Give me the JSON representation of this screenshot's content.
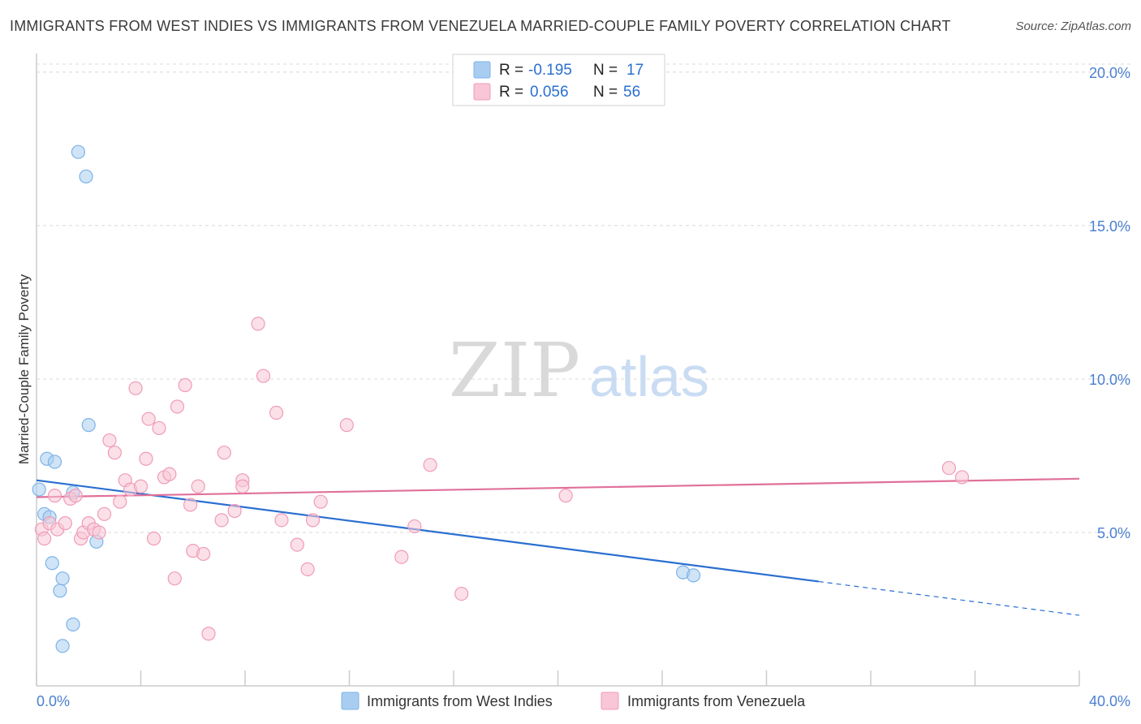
{
  "header": {
    "title": "IMMIGRANTS FROM WEST INDIES VS IMMIGRANTS FROM VENEZUELA MARRIED-COUPLE FAMILY POVERTY CORRELATION CHART",
    "source": "Source: ZipAtlas.com"
  },
  "watermark": {
    "zip": "ZIP",
    "atlas": "atlas"
  },
  "chart_data": {
    "type": "scatter",
    "title": "IMMIGRANTS FROM WEST INDIES VS IMMIGRANTS FROM VENEZUELA MARRIED-COUPLE FAMILY POVERTY CORRELATION CHART",
    "xlabel": "",
    "ylabel": "Married-Couple Family Poverty",
    "xlim": [
      0,
      40
    ],
    "ylim": [
      0,
      20.5
    ],
    "x_tick_labels": {
      "min": "0.0%",
      "max": "40.0%"
    },
    "y_ticks": [
      {
        "value": 5,
        "label": "5.0%"
      },
      {
        "value": 10,
        "label": "10.0%"
      },
      {
        "value": 15,
        "label": "15.0%"
      },
      {
        "value": 20,
        "label": "20.0%"
      }
    ],
    "grid": "horizontal dashed",
    "legend_position": "bottom",
    "series": [
      {
        "name": "Immigrants from West Indies",
        "color": "#7eb3e8",
        "fill": "#a9cdf1",
        "line_color": "#2a6fd0",
        "r_label": "R =",
        "r_value": "-0.195",
        "n_label": "N =",
        "n_value": "17",
        "trend": {
          "x0": 0,
          "y0": 6.7,
          "x1": 30,
          "y1": 3.4,
          "dash_to_x": 40,
          "dash_to_y": 2.3
        },
        "points": [
          [
            0.1,
            6.4
          ],
          [
            0.3,
            5.6
          ],
          [
            0.4,
            7.4
          ],
          [
            0.5,
            5.5
          ],
          [
            0.6,
            4.0
          ],
          [
            0.7,
            7.3
          ],
          [
            0.9,
            3.1
          ],
          [
            1.0,
            1.3
          ],
          [
            1.0,
            3.5
          ],
          [
            1.4,
            2.0
          ],
          [
            1.4,
            6.3
          ],
          [
            1.6,
            17.4
          ],
          [
            1.9,
            16.6
          ],
          [
            2.0,
            8.5
          ],
          [
            2.3,
            4.7
          ],
          [
            24.8,
            3.7
          ],
          [
            25.2,
            3.6
          ]
        ]
      },
      {
        "name": "Immigrants from Venezuela",
        "color": "#f09bb8",
        "fill": "#f8c6d6",
        "line_color": "#e0709a",
        "r_label": "R =",
        "r_value": "0.056",
        "n_label": "N =",
        "n_value": "56",
        "trend": {
          "x0": 0,
          "y0": 6.15,
          "x1": 40,
          "y1": 6.75
        },
        "points": [
          [
            0.2,
            5.1
          ],
          [
            0.3,
            4.8
          ],
          [
            0.5,
            5.3
          ],
          [
            0.7,
            6.2
          ],
          [
            0.8,
            5.1
          ],
          [
            1.1,
            5.3
          ],
          [
            1.3,
            6.1
          ],
          [
            1.5,
            6.2
          ],
          [
            1.7,
            4.8
          ],
          [
            1.8,
            5.0
          ],
          [
            2.0,
            5.3
          ],
          [
            2.2,
            5.1
          ],
          [
            2.4,
            5.0
          ],
          [
            2.6,
            5.6
          ],
          [
            2.8,
            8.0
          ],
          [
            3.0,
            7.6
          ],
          [
            3.2,
            6.0
          ],
          [
            3.4,
            6.7
          ],
          [
            3.6,
            6.4
          ],
          [
            3.8,
            9.7
          ],
          [
            4.0,
            6.5
          ],
          [
            4.2,
            7.4
          ],
          [
            4.3,
            8.7
          ],
          [
            4.5,
            4.8
          ],
          [
            4.7,
            8.4
          ],
          [
            4.9,
            6.8
          ],
          [
            5.1,
            6.9
          ],
          [
            5.3,
            3.5
          ],
          [
            5.4,
            9.1
          ],
          [
            5.7,
            9.8
          ],
          [
            5.9,
            5.9
          ],
          [
            6.0,
            4.4
          ],
          [
            6.2,
            6.5
          ],
          [
            6.4,
            4.3
          ],
          [
            6.6,
            1.7
          ],
          [
            7.1,
            5.4
          ],
          [
            7.2,
            7.6
          ],
          [
            7.6,
            5.7
          ],
          [
            7.9,
            6.7
          ],
          [
            7.9,
            6.5
          ],
          [
            8.5,
            11.8
          ],
          [
            8.7,
            10.1
          ],
          [
            9.2,
            8.9
          ],
          [
            9.4,
            5.4
          ],
          [
            10.0,
            4.6
          ],
          [
            10.4,
            3.8
          ],
          [
            10.6,
            5.4
          ],
          [
            10.9,
            6.0
          ],
          [
            11.9,
            8.5
          ],
          [
            14.0,
            4.2
          ],
          [
            14.5,
            5.2
          ],
          [
            15.1,
            7.2
          ],
          [
            16.3,
            3.0
          ],
          [
            20.3,
            6.2
          ],
          [
            35.0,
            7.1
          ],
          [
            35.5,
            6.8
          ]
        ]
      }
    ]
  },
  "colors": {
    "axis": "#cccccc",
    "grid": "#d8d8d8",
    "tick_label": "#4a7fd0",
    "axis_title": "#333333"
  }
}
